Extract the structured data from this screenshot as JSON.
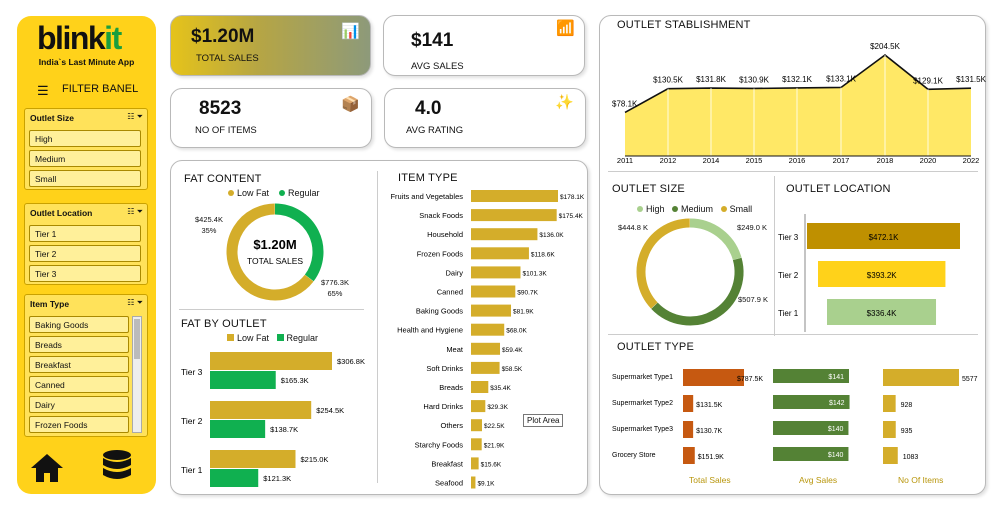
{
  "brand": {
    "logo_main": "blink",
    "logo_accent": "it",
    "tagline": "India`s Last Minute App",
    "filter_title": "FILTER BANEL"
  },
  "filters": [
    {
      "title": "Outlet Size",
      "items": [
        "High",
        "Medium",
        "Small"
      ]
    },
    {
      "title": "Outlet Location",
      "items": [
        "Tier 1",
        "Tier 2",
        "Tier 3"
      ]
    },
    {
      "title": "Item Type",
      "items": [
        "Baking Goods",
        "Breads",
        "Breakfast",
        "Canned",
        "Dairy",
        "Frozen Foods"
      ]
    }
  ],
  "kpis": {
    "total_sales": {
      "value": "$1.20M",
      "label": "TOTAL SALES"
    },
    "avg_sales": {
      "value": "$141",
      "label": "AVG SALES"
    },
    "no_of_items": {
      "value": "8523",
      "label": "NO OF ITEMS"
    },
    "avg_rating": {
      "value": "4.0",
      "label": "AVG RATING"
    }
  },
  "colors": {
    "gold": "#d4ad2a",
    "green": "#10b050",
    "yellow": "#ffd21a",
    "area": "#ffe866",
    "dark_gold": "#bf9000",
    "light_green": "#a9d08e",
    "olive": "#548235",
    "orange": "#c65911"
  },
  "fat_content": {
    "title": "FAT CONTENT",
    "legend": [
      "Low Fat",
      "Regular"
    ],
    "center_value": "$1.20M",
    "center_label": "TOTAL SALES",
    "labels": {
      "regular_value": "$425.4K",
      "regular_pct": "35%",
      "lowfat_value": "$776.3K",
      "lowfat_pct": "65%"
    }
  },
  "fat_by_outlet": {
    "title": "FAT BY OUTLET",
    "legend": [
      "Low Fat",
      "Regular"
    ],
    "rows": [
      {
        "tier": "Tier 3",
        "low": "$306.8K",
        "reg": "$165.3K"
      },
      {
        "tier": "Tier 2",
        "low": "$254.5K",
        "reg": "$138.7K"
      },
      {
        "tier": "Tier 1",
        "low": "$215.0K",
        "reg": "$121.3K"
      }
    ]
  },
  "item_type": {
    "title": "ITEM TYPE",
    "tooltip": "Plot Area",
    "items": [
      [
        "Fruits and Vegetables",
        "$178.1K"
      ],
      [
        "Snack Foods",
        "$175.4K"
      ],
      [
        "Household",
        "$136.0K"
      ],
      [
        "Frozen Foods",
        "$118.6K"
      ],
      [
        "Dairy",
        "$101.3K"
      ],
      [
        "Canned",
        "$90.7K"
      ],
      [
        "Baking Goods",
        "$81.9K"
      ],
      [
        "Health and Hygiene",
        "$68.0K"
      ],
      [
        "Meat",
        "$59.4K"
      ],
      [
        "Soft Drinks",
        "$58.5K"
      ],
      [
        "Breads",
        "$35.4K"
      ],
      [
        "Hard Drinks",
        "$29.3K"
      ],
      [
        "Others",
        "$22.5K"
      ],
      [
        "Starchy Foods",
        "$21.9K"
      ],
      [
        "Breakfast",
        "$15.6K"
      ],
      [
        "Seafood",
        "$9.1K"
      ]
    ]
  },
  "outlet_establishment": {
    "title": "OUTLET STABLISHMENT",
    "points": [
      [
        "2011",
        "$78.1K"
      ],
      [
        "2012",
        "$130.5K"
      ],
      [
        "2014",
        "$131.8K"
      ],
      [
        "2015",
        "$130.9K"
      ],
      [
        "2016",
        "$132.1K"
      ],
      [
        "2017",
        "$133.1K"
      ],
      [
        "2018",
        "$204.5K"
      ],
      [
        "2020",
        "$129.1K"
      ],
      [
        "2022",
        "$131.5K"
      ]
    ]
  },
  "outlet_size": {
    "title": "OUTLET SIZE",
    "legend": [
      "High",
      "Medium",
      "Small"
    ],
    "labels": {
      "small": "$444.8 K",
      "high": "$249.0 K",
      "medium": "$507.9 K"
    }
  },
  "outlet_location": {
    "title": "OUTLET LOCATION",
    "rows": [
      [
        "Tier 3",
        "$472.1K"
      ],
      [
        "Tier 2",
        "$393.2K"
      ],
      [
        "Tier 1",
        "$336.4K"
      ]
    ]
  },
  "outlet_type": {
    "title": "OUTLET TYPE",
    "columns": [
      "Total Sales",
      "Avg Sales",
      "No Of Items"
    ],
    "rows": [
      {
        "name": "Supermarket Type1",
        "sales": "$787.5K",
        "avg": "$141",
        "items": "5577"
      },
      {
        "name": "Supermarket Type2",
        "sales": "$131.5K",
        "avg": "$142",
        "items": "928"
      },
      {
        "name": "Supermarket Type3",
        "sales": "$130.7K",
        "avg": "$140",
        "items": "935"
      },
      {
        "name": "Grocery Store",
        "sales": "$151.9K",
        "avg": "$140",
        "items": "1083"
      }
    ]
  },
  "chart_data": [
    {
      "type": "pie",
      "title": "FAT CONTENT",
      "labels": [
        "Low Fat",
        "Regular"
      ],
      "values": [
        776.3,
        425.4
      ],
      "units": "$K"
    },
    {
      "type": "bar",
      "title": "FAT BY OUTLET",
      "categories": [
        "Tier 3",
        "Tier 2",
        "Tier 1"
      ],
      "series": [
        {
          "name": "Low Fat",
          "values": [
            306.8,
            254.5,
            215.0
          ]
        },
        {
          "name": "Regular",
          "values": [
            165.3,
            138.7,
            121.3
          ]
        }
      ]
    },
    {
      "type": "bar",
      "title": "ITEM TYPE",
      "categories": [
        "Fruits and Vegetables",
        "Snack Foods",
        "Household",
        "Frozen Foods",
        "Dairy",
        "Canned",
        "Baking Goods",
        "Health and Hygiene",
        "Meat",
        "Soft Drinks",
        "Breads",
        "Hard Drinks",
        "Others",
        "Starchy Foods",
        "Breakfast",
        "Seafood"
      ],
      "values": [
        178.1,
        175.4,
        136.0,
        118.6,
        101.3,
        90.7,
        81.9,
        68.0,
        59.4,
        58.5,
        35.4,
        29.3,
        22.5,
        21.9,
        15.6,
        9.1
      ]
    },
    {
      "type": "area",
      "title": "OUTLET STABLISHMENT",
      "x": [
        "2011",
        "2012",
        "2014",
        "2015",
        "2016",
        "2017",
        "2018",
        "2020",
        "2022"
      ],
      "values": [
        78.1,
        130.5,
        131.8,
        130.9,
        132.1,
        133.1,
        204.5,
        129.1,
        131.5
      ]
    },
    {
      "type": "pie",
      "title": "OUTLET SIZE",
      "labels": [
        "High",
        "Medium",
        "Small"
      ],
      "values": [
        249.0,
        507.9,
        444.8
      ]
    },
    {
      "type": "bar",
      "title": "OUTLET LOCATION",
      "categories": [
        "Tier 3",
        "Tier 2",
        "Tier 1"
      ],
      "values": [
        472.1,
        393.2,
        336.4
      ]
    },
    {
      "type": "bar",
      "title": "OUTLET TYPE",
      "categories": [
        "Supermarket Type1",
        "Supermarket Type2",
        "Supermarket Type3",
        "Grocery Store"
      ],
      "series": [
        {
          "name": "Total Sales",
          "values": [
            787.5,
            131.5,
            130.7,
            151.9
          ]
        },
        {
          "name": "Avg Sales",
          "values": [
            141,
            142,
            140,
            140
          ]
        },
        {
          "name": "No Of Items",
          "values": [
            5577,
            928,
            935,
            1083
          ]
        }
      ]
    }
  ]
}
